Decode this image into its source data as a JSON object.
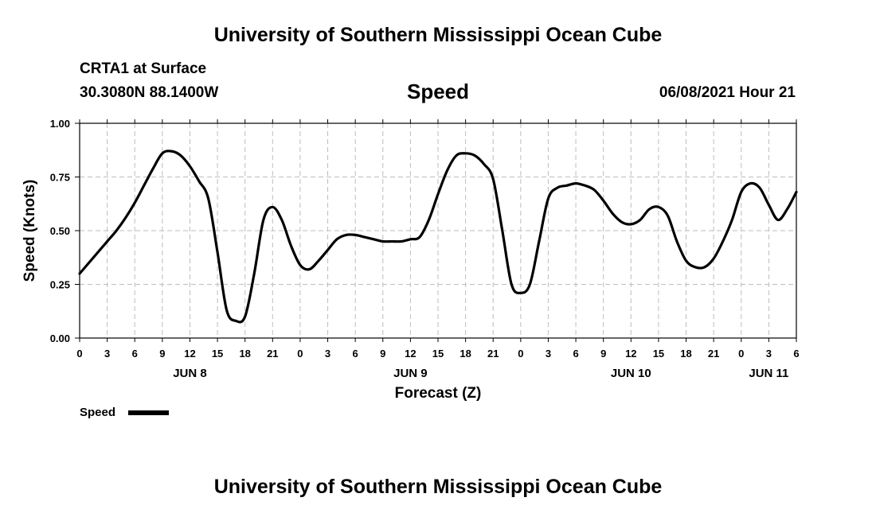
{
  "header": {
    "title": "University of Southern Mississippi Ocean Cube",
    "station": "CRTA1 at Surface",
    "coordinates": "30.3080N  88.1400W",
    "variable": "Speed",
    "datetime": "06/08/2021 Hour 21"
  },
  "footer": {
    "title": "University of Southern Mississippi Ocean Cube"
  },
  "legend": {
    "label": "Speed",
    "color": "#000000"
  },
  "chart_data": {
    "type": "line",
    "title": "Speed",
    "xlabel": "Forecast (Z)",
    "ylabel": "Speed (Knots)",
    "ylim": [
      0,
      1
    ],
    "xlim": [
      0,
      78
    ],
    "x_units": "hours since JUN 8 00Z",
    "grid": true,
    "yticks": [
      "0.00",
      "0.25",
      "0.50",
      "0.75",
      "1.00"
    ],
    "xtick_labels": [
      "0",
      "3",
      "6",
      "9",
      "12",
      "15",
      "18",
      "21",
      "0",
      "3",
      "6",
      "9",
      "12",
      "15",
      "18",
      "21",
      "0",
      "3",
      "6",
      "9",
      "12",
      "15",
      "18",
      "21",
      "0",
      "3",
      "6"
    ],
    "day_labels": [
      {
        "label": "JUN 8",
        "hour": 12
      },
      {
        "label": "JUN 9",
        "hour": 36
      },
      {
        "label": "JUN 10",
        "hour": 60
      },
      {
        "label": "JUN 11",
        "hour": 75
      }
    ],
    "series": [
      {
        "name": "Speed",
        "x": [
          0,
          1,
          2,
          3,
          4,
          5,
          6,
          7,
          8,
          9,
          10,
          11,
          12,
          13,
          14,
          15,
          16,
          17,
          18,
          19,
          20,
          21,
          22,
          23,
          24,
          25,
          26,
          27,
          28,
          29,
          30,
          31,
          32,
          33,
          34,
          35,
          36,
          37,
          38,
          39,
          40,
          41,
          42,
          43,
          44,
          45,
          46,
          47,
          48,
          49,
          50,
          51,
          52,
          53,
          54,
          55,
          56,
          57,
          58,
          59,
          60,
          61,
          62,
          63,
          64,
          65,
          66,
          67,
          68,
          69,
          70,
          71,
          72,
          73,
          74,
          75,
          76,
          77,
          78
        ],
        "values": [
          0.3,
          0.35,
          0.4,
          0.45,
          0.5,
          0.56,
          0.63,
          0.71,
          0.79,
          0.86,
          0.87,
          0.85,
          0.8,
          0.73,
          0.65,
          0.4,
          0.13,
          0.08,
          0.1,
          0.3,
          0.55,
          0.61,
          0.55,
          0.43,
          0.34,
          0.32,
          0.36,
          0.41,
          0.46,
          0.48,
          0.48,
          0.47,
          0.46,
          0.45,
          0.45,
          0.45,
          0.46,
          0.47,
          0.55,
          0.67,
          0.78,
          0.85,
          0.86,
          0.85,
          0.81,
          0.74,
          0.5,
          0.25,
          0.21,
          0.25,
          0.45,
          0.65,
          0.7,
          0.71,
          0.72,
          0.71,
          0.69,
          0.64,
          0.58,
          0.54,
          0.53,
          0.55,
          0.6,
          0.61,
          0.57,
          0.45,
          0.36,
          0.33,
          0.33,
          0.37,
          0.45,
          0.55,
          0.68,
          0.72,
          0.7,
          0.62,
          0.55,
          0.6,
          0.68
        ]
      }
    ]
  }
}
